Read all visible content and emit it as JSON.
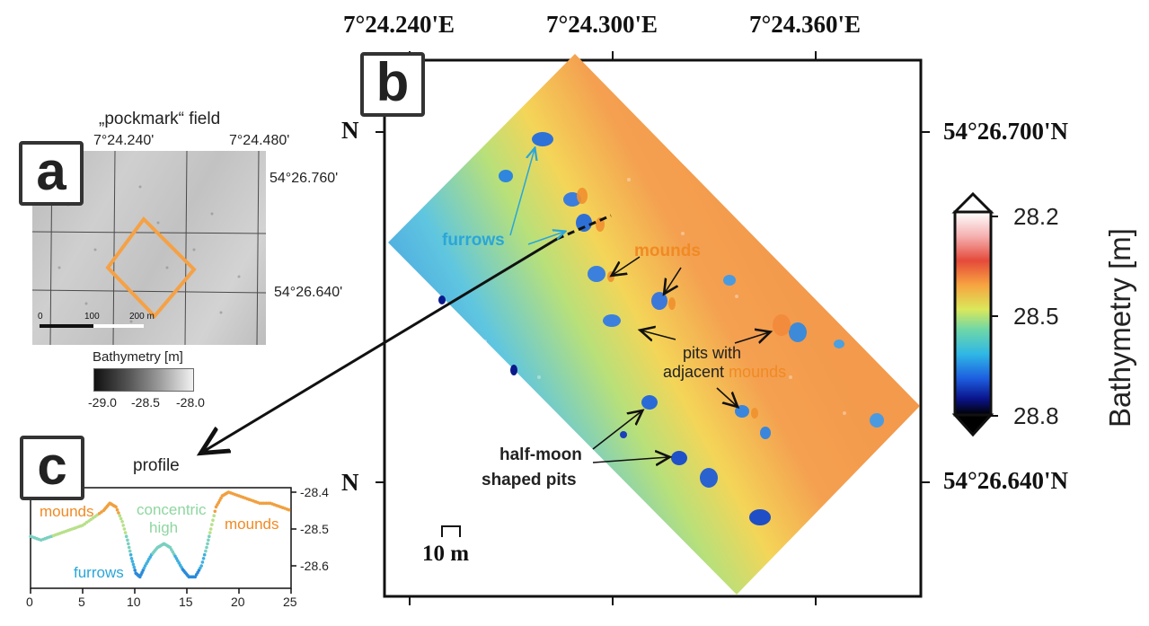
{
  "panel_a": {
    "label": "a",
    "title": "„pockmark“ field",
    "lon_ticks": [
      "7°24.240'",
      "7°24.480'"
    ],
    "lat_ticks": [
      "54°26.760'",
      "54°26.640'"
    ],
    "scalebar": [
      "0",
      "100",
      "200 m"
    ],
    "colorbar_title": "Bathymetry [m]",
    "colorbar_ticks": [
      "-29.0",
      "-28.5",
      "-28.0"
    ]
  },
  "panel_b": {
    "label": "b",
    "lon_ticks": [
      "7°24.240'E",
      "7°24.300'E",
      "7°24.360'E"
    ],
    "lat_ticks": [
      "54°26.700'N",
      "54°26.640'N"
    ],
    "left_lat_letters": [
      "N",
      "N"
    ],
    "scale_label": "10 m",
    "annotations": {
      "furrows": "furrows",
      "mounds": "mounds",
      "pits_line1": "pits with",
      "pits_line2_a": "adjacent ",
      "pits_line2_b": "mounds",
      "halfmoon_line1": "half-moon",
      "halfmoon_line2": "shaped pits"
    },
    "colorbar": {
      "title": "Bathymetry [m]",
      "ticks": [
        "28.2",
        "28.5",
        "28.8"
      ]
    }
  },
  "panel_c": {
    "label": "c",
    "title": "profile",
    "labels": {
      "mounds_left": "mounds",
      "concentric_1": "concentric",
      "concentric_2": "high",
      "mounds_right": "mounds",
      "furrows": "furrows"
    },
    "x_ticks": [
      "0",
      "5",
      "10",
      "15",
      "20",
      "25"
    ],
    "y_ticks": [
      "-28.4",
      "-28.5",
      "-28.6"
    ]
  },
  "colors": {
    "furrows_blue": "#2aa6d8",
    "mounds_orange": "#f08a24",
    "concentric_green": "#8fd6a0",
    "highlight_box": "#f5a145"
  }
}
